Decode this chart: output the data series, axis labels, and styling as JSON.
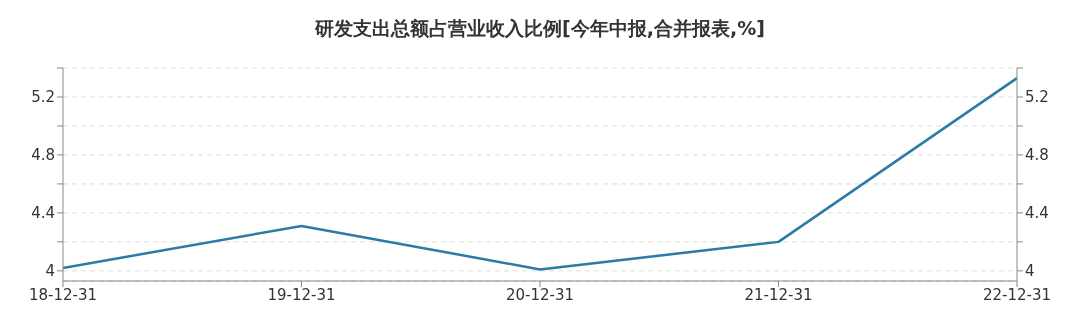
{
  "chart_data": {
    "type": "line",
    "title": "研发支出总额占营业收入比例[今年中报,合并报表,%]",
    "categories": [
      "18-12-31",
      "19-12-31",
      "20-12-31",
      "21-12-31",
      "22-12-31"
    ],
    "series": [
      {
        "color": "#2b7ba6",
        "values": [
          4.02,
          4.31,
          4.01,
          4.2,
          5.33
        ]
      }
    ],
    "ylim": [
      3.93,
      5.4
    ],
    "yticks": [
      4,
      {
        "value": 4.2,
        "label": null
      },
      4.4,
      {
        "value": 4.6,
        "label": null
      },
      4.8,
      {
        "value": 5.0,
        "label": null
      },
      5.2,
      {
        "value": 5.4,
        "label": null
      }
    ],
    "y2lim": [
      3.93,
      5.4
    ],
    "y2ticks": [
      4,
      {
        "value": 4.2,
        "label": null
      },
      4.4,
      {
        "value": 4.6,
        "label": null
      },
      4.8,
      {
        "value": 5.0,
        "label": null
      },
      5.2,
      {
        "value": 5.4,
        "label": null
      }
    ],
    "grid": "y",
    "marker": "none",
    "line_style": "solid"
  }
}
